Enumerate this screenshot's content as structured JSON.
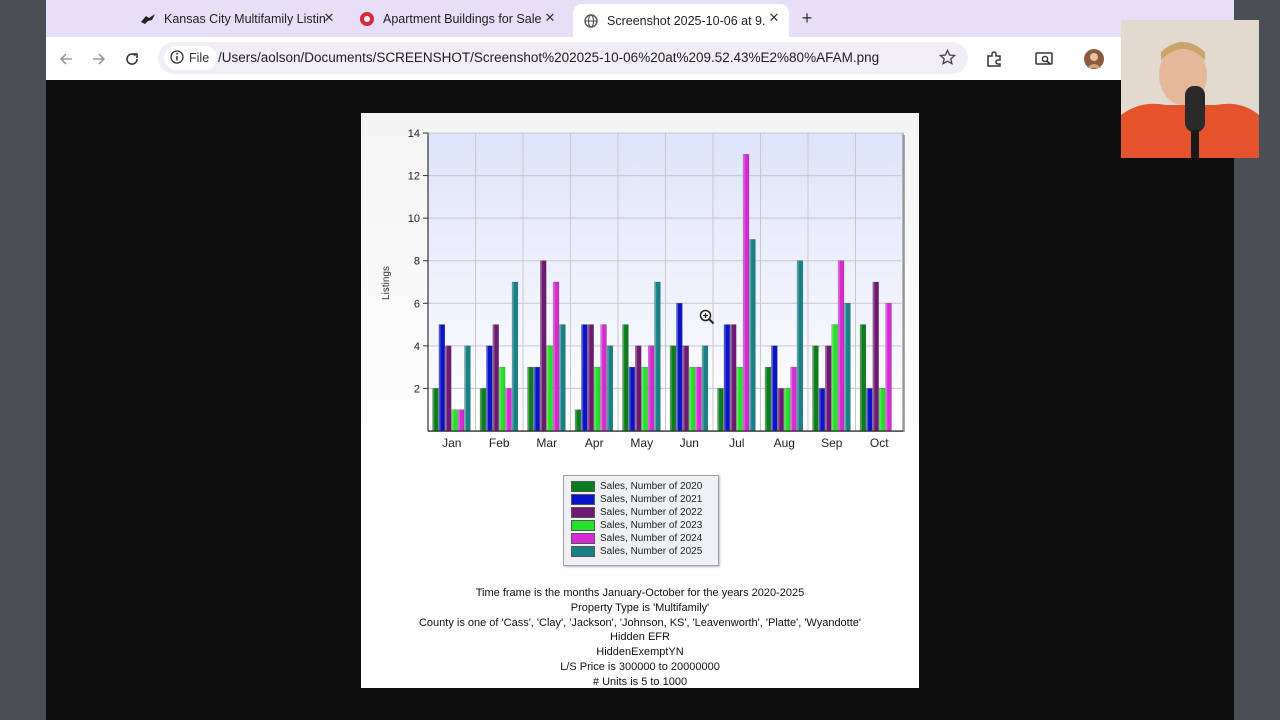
{
  "tabs": [
    {
      "title": "Kansas City Multifamily Listin",
      "active": false
    },
    {
      "title": "Apartment Buildings for Sale",
      "active": false
    },
    {
      "title": "Screenshot 2025-10-06 at 9.",
      "active": true
    }
  ],
  "address_bar": {
    "chip_label": "File",
    "url": "/Users/aolson/Documents/SCREENSHOT/Screenshot%202025-10-06%20at%209.52.43%E2%80%AFAM.png"
  },
  "icons": {
    "back": "arrow-left-icon",
    "forward": "arrow-right-icon",
    "reload": "reload-icon",
    "info": "info-icon",
    "bookmark": "star-icon",
    "extensions": "puzzle-icon",
    "cast": "cast-icon",
    "profile": "avatar",
    "new_tab": "plus-icon"
  },
  "chart_data": {
    "type": "bar",
    "categories": [
      "Jan",
      "Feb",
      "Mar",
      "Apr",
      "May",
      "Jun",
      "Jul",
      "Aug",
      "Sep",
      "Oct"
    ],
    "ylabel": "Listings",
    "ylim": [
      0,
      14
    ],
    "yticks": [
      2,
      4,
      6,
      8,
      10,
      12,
      14
    ],
    "grid": true,
    "legend_position": "below",
    "series": [
      {
        "name": "Sales, Number of 2020",
        "color": "#0b7d1c",
        "values": [
          2,
          2,
          3,
          1,
          5,
          4,
          2,
          3,
          4,
          5
        ]
      },
      {
        "name": "Sales, Number of 2021",
        "color": "#0a14c8",
        "values": [
          5,
          4,
          3,
          5,
          3,
          6,
          5,
          4,
          2,
          2
        ]
      },
      {
        "name": "Sales, Number of 2022",
        "color": "#6e1a72",
        "values": [
          4,
          5,
          8,
          5,
          4,
          4,
          5,
          2,
          4,
          7
        ]
      },
      {
        "name": "Sales, Number of 2023",
        "color": "#27e02a",
        "values": [
          1,
          3,
          4,
          3,
          3,
          3,
          3,
          2,
          5,
          2
        ]
      },
      {
        "name": "Sales, Number of 2024",
        "color": "#d42bd4",
        "values": [
          1,
          2,
          7,
          5,
          4,
          3,
          13,
          3,
          8,
          6
        ]
      },
      {
        "name": "Sales, Number of 2025",
        "color": "#168285",
        "values": [
          4,
          7,
          5,
          4,
          7,
          4,
          9,
          8,
          6,
          null
        ]
      }
    ]
  },
  "criteria": [
    "Time frame is the months January-October for the years 2020-2025",
    "Property Type is 'Multifamily'",
    "County is one of 'Cass', 'Clay', 'Jackson', 'Johnson, KS', 'Leavenworth', 'Platte', 'Wyandotte'",
    "Hidden EFR",
    "HiddenExemptYN",
    "L/S Price is 300000 to 20000000",
    "# Units is 5 to 1000"
  ]
}
